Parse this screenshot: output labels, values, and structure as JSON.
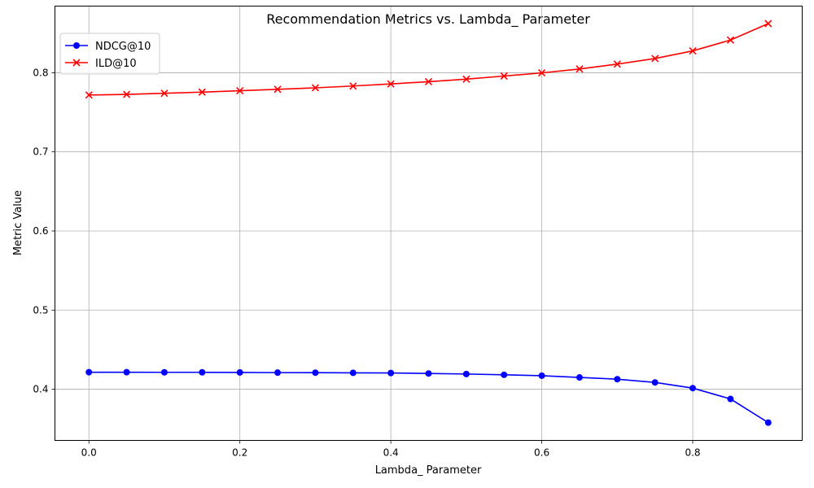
{
  "chart_data": {
    "type": "line",
    "title": "Recommendation Metrics vs. Lambda_ Parameter",
    "xlabel": "Lambda_ Parameter",
    "ylabel": "Metric Value",
    "xlim": [
      -0.045,
      0.945
    ],
    "ylim": [
      0.3353,
      0.8842
    ],
    "xticks": [
      0.0,
      0.2,
      0.4,
      0.6,
      0.8
    ],
    "xtick_labels": [
      "0.0",
      "0.2",
      "0.4",
      "0.6",
      "0.8"
    ],
    "yticks": [
      0.4,
      0.5,
      0.6,
      0.7,
      0.8
    ],
    "ytick_labels": [
      "0.4",
      "0.5",
      "0.6",
      "0.7",
      "0.8"
    ],
    "grid": true,
    "legend_position": "top-left",
    "x": [
      0.0,
      0.05,
      0.1,
      0.15,
      0.2,
      0.25,
      0.3,
      0.35,
      0.4,
      0.45,
      0.5,
      0.55,
      0.6,
      0.65,
      0.7,
      0.75,
      0.8,
      0.85,
      0.9
    ],
    "series": [
      {
        "name": "NDCG@10",
        "color": "#0000ff",
        "marker": "circle",
        "values": [
          0.4215,
          0.4215,
          0.4214,
          0.4214,
          0.4212,
          0.421,
          0.4209,
          0.4207,
          0.4205,
          0.4199,
          0.4192,
          0.4182,
          0.4171,
          0.4149,
          0.4127,
          0.4086,
          0.4014,
          0.3877,
          0.3578
        ]
      },
      {
        "name": "ILD@10",
        "color": "#ff0000",
        "marker": "x",
        "values": [
          0.7718,
          0.7726,
          0.774,
          0.7755,
          0.7772,
          0.779,
          0.7809,
          0.7832,
          0.7858,
          0.7887,
          0.7919,
          0.7958,
          0.7998,
          0.8047,
          0.8109,
          0.818,
          0.8276,
          0.8413,
          0.8621
        ]
      }
    ]
  }
}
